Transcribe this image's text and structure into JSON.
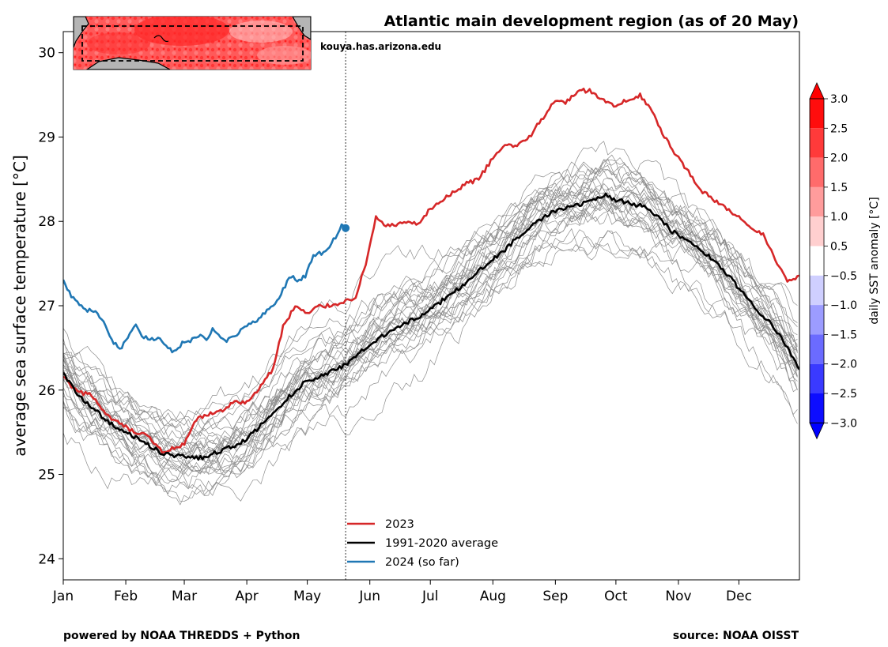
{
  "chart_data": {
    "type": "line",
    "title": "Atlantic main development region (as of 20 May)",
    "ylabel": "average sea surface temperature [°C]",
    "xlabel": "",
    "ylim": [
      23.75,
      30.25
    ],
    "yticks": [
      24,
      25,
      26,
      27,
      28,
      29,
      30
    ],
    "xlim_day": [
      1,
      366
    ],
    "month_ticks": [
      {
        "label": "Jan",
        "day": 1
      },
      {
        "label": "Feb",
        "day": 32
      },
      {
        "label": "Mar",
        "day": 61
      },
      {
        "label": "Apr",
        "day": 92
      },
      {
        "label": "May",
        "day": 122
      },
      {
        "label": "Jun",
        "day": 153
      },
      {
        "label": "Jul",
        "day": 183
      },
      {
        "label": "Aug",
        "day": 214
      },
      {
        "label": "Sep",
        "day": 245
      },
      {
        "label": "Oct",
        "day": 275
      },
      {
        "label": "Nov",
        "day": 306
      },
      {
        "label": "Dec",
        "day": 336
      }
    ],
    "current_day": 141,
    "current_value": 27.92,
    "series": [
      {
        "name": "2023",
        "color": "#d62728",
        "points": [
          [
            1,
            26.15
          ],
          [
            8,
            25.97
          ],
          [
            15,
            25.95
          ],
          [
            22,
            25.7
          ],
          [
            29,
            25.6
          ],
          [
            36,
            25.5
          ],
          [
            43,
            25.45
          ],
          [
            50,
            25.27
          ],
          [
            55,
            25.3
          ],
          [
            61,
            25.35
          ],
          [
            67,
            25.65
          ],
          [
            72,
            25.7
          ],
          [
            79,
            25.75
          ],
          [
            85,
            25.85
          ],
          [
            92,
            25.85
          ],
          [
            99,
            26.05
          ],
          [
            105,
            26.25
          ],
          [
            110,
            26.75
          ],
          [
            116,
            27.0
          ],
          [
            122,
            26.9
          ],
          [
            128,
            27.0
          ],
          [
            134,
            27.0
          ],
          [
            140,
            27.05
          ],
          [
            146,
            27.1
          ],
          [
            151,
            27.5
          ],
          [
            156,
            28.05
          ],
          [
            161,
            27.95
          ],
          [
            166,
            27.95
          ],
          [
            172,
            28.0
          ],
          [
            177,
            27.95
          ],
          [
            183,
            28.15
          ],
          [
            189,
            28.25
          ],
          [
            195,
            28.35
          ],
          [
            201,
            28.45
          ],
          [
            207,
            28.5
          ],
          [
            214,
            28.75
          ],
          [
            220,
            28.9
          ],
          [
            226,
            28.9
          ],
          [
            232,
            29.0
          ],
          [
            238,
            29.2
          ],
          [
            245,
            29.45
          ],
          [
            250,
            29.4
          ],
          [
            256,
            29.55
          ],
          [
            262,
            29.55
          ],
          [
            268,
            29.45
          ],
          [
            275,
            29.35
          ],
          [
            281,
            29.45
          ],
          [
            287,
            29.5
          ],
          [
            293,
            29.3
          ],
          [
            299,
            29.0
          ],
          [
            306,
            28.75
          ],
          [
            312,
            28.55
          ],
          [
            318,
            28.35
          ],
          [
            324,
            28.25
          ],
          [
            330,
            28.15
          ],
          [
            336,
            28.05
          ],
          [
            342,
            27.9
          ],
          [
            348,
            27.85
          ],
          [
            354,
            27.55
          ],
          [
            360,
            27.3
          ],
          [
            366,
            27.35
          ]
        ]
      },
      {
        "name": "1991-2020 average",
        "color": "#000000",
        "points": [
          [
            1,
            26.2
          ],
          [
            8,
            25.95
          ],
          [
            15,
            25.8
          ],
          [
            22,
            25.65
          ],
          [
            29,
            25.52
          ],
          [
            36,
            25.45
          ],
          [
            43,
            25.35
          ],
          [
            50,
            25.25
          ],
          [
            57,
            25.22
          ],
          [
            64,
            25.2
          ],
          [
            71,
            25.2
          ],
          [
            78,
            25.27
          ],
          [
            85,
            25.33
          ],
          [
            92,
            25.42
          ],
          [
            99,
            25.58
          ],
          [
            106,
            25.75
          ],
          [
            113,
            25.92
          ],
          [
            120,
            26.08
          ],
          [
            127,
            26.15
          ],
          [
            134,
            26.22
          ],
          [
            141,
            26.3
          ],
          [
            148,
            26.45
          ],
          [
            155,
            26.58
          ],
          [
            162,
            26.68
          ],
          [
            169,
            26.78
          ],
          [
            176,
            26.85
          ],
          [
            183,
            26.95
          ],
          [
            190,
            27.08
          ],
          [
            197,
            27.2
          ],
          [
            204,
            27.35
          ],
          [
            211,
            27.5
          ],
          [
            218,
            27.62
          ],
          [
            225,
            27.78
          ],
          [
            232,
            27.92
          ],
          [
            239,
            28.05
          ],
          [
            246,
            28.13
          ],
          [
            253,
            28.17
          ],
          [
            260,
            28.22
          ],
          [
            267,
            28.28
          ],
          [
            270,
            28.32
          ],
          [
            275,
            28.25
          ],
          [
            282,
            28.22
          ],
          [
            289,
            28.17
          ],
          [
            296,
            28.05
          ],
          [
            303,
            27.88
          ],
          [
            310,
            27.78
          ],
          [
            317,
            27.67
          ],
          [
            324,
            27.52
          ],
          [
            331,
            27.35
          ],
          [
            338,
            27.15
          ],
          [
            345,
            26.95
          ],
          [
            352,
            26.78
          ],
          [
            359,
            26.55
          ],
          [
            366,
            26.25
          ]
        ]
      },
      {
        "name": "2024 (so far)",
        "color": "#1f77b4",
        "points": [
          [
            1,
            27.3
          ],
          [
            5,
            27.1
          ],
          [
            9,
            27.02
          ],
          [
            13,
            26.95
          ],
          [
            17,
            26.95
          ],
          [
            21,
            26.8
          ],
          [
            25,
            26.6
          ],
          [
            29,
            26.48
          ],
          [
            33,
            26.62
          ],
          [
            37,
            26.78
          ],
          [
            41,
            26.62
          ],
          [
            45,
            26.6
          ],
          [
            49,
            26.62
          ],
          [
            53,
            26.5
          ],
          [
            56,
            26.45
          ],
          [
            60,
            26.55
          ],
          [
            64,
            26.58
          ],
          [
            68,
            26.65
          ],
          [
            72,
            26.6
          ],
          [
            75,
            26.72
          ],
          [
            78,
            26.65
          ],
          [
            82,
            26.58
          ],
          [
            86,
            26.65
          ],
          [
            90,
            26.72
          ],
          [
            94,
            26.78
          ],
          [
            98,
            26.85
          ],
          [
            102,
            26.95
          ],
          [
            106,
            27.02
          ],
          [
            110,
            27.2
          ],
          [
            114,
            27.35
          ],
          [
            117,
            27.3
          ],
          [
            121,
            27.35
          ],
          [
            125,
            27.6
          ],
          [
            129,
            27.62
          ],
          [
            133,
            27.7
          ],
          [
            137,
            27.85
          ],
          [
            139,
            27.95
          ],
          [
            141,
            27.92
          ]
        ]
      }
    ],
    "legend": [
      "2023",
      "1991-2020 average",
      "2024 (so far)"
    ],
    "legend_location": "lower-center",
    "colorbar": {
      "label": "daily SST anomaly [°C]",
      "tick_labels": [
        "3.0",
        "2.5",
        "2.0",
        "1.5",
        "1.0",
        "0.5",
        "−0.5",
        "−1.0",
        "−1.5",
        "−2.0",
        "−2.5",
        "−3.0"
      ],
      "colors": [
        "#ff0d0d",
        "#ff3a3a",
        "#ff6b6b",
        "#ff9c9c",
        "#ffcfcf",
        "#ffffff",
        "#cfcfff",
        "#9c9cff",
        "#6b6bff",
        "#3a3aff",
        "#0d0dff"
      ],
      "extend_top_color": "#ff0000",
      "extend_bottom_color": "#0000ff"
    }
  },
  "inset_map": {
    "description_color": "#ff4a4a",
    "land_color": "#b5b5b5"
  },
  "annotations": {
    "source_url": "kouya.has.arizona.edu",
    "powered_by": "powered by NOAA THREDDS + Python",
    "source": "source: NOAA OISST"
  }
}
